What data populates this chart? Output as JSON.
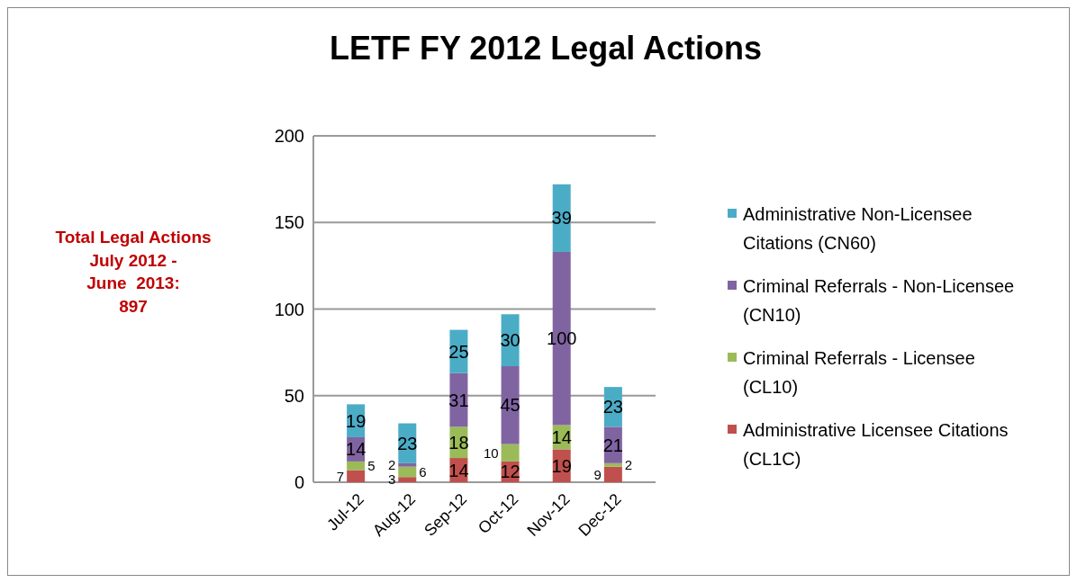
{
  "chart_data": {
    "type": "bar",
    "title": "LETF FY 2012 Legal Actions",
    "categories": [
      "Jul-12",
      "Aug-12",
      "Sep-12",
      "Oct-12",
      "Nov-12",
      "Dec-12"
    ],
    "stacked": true,
    "series": [
      {
        "name": "Administrative Licensee Citations (CL1C)",
        "color": "#c0504d",
        "values": [
          7,
          3,
          14,
          12,
          19,
          9
        ]
      },
      {
        "name": "Criminal Referrals - Licensee (CL10)",
        "color": "#9bbb59",
        "values": [
          5,
          6,
          18,
          10,
          14,
          2
        ]
      },
      {
        "name": "Criminal Referrals - Non-Licensee (CN10)",
        "color": "#8064a2",
        "values": [
          14,
          2,
          31,
          45,
          100,
          21
        ]
      },
      {
        "name": "Administrative Non-Licensee Citations (CN60)",
        "color": "#4bacc6",
        "values": [
          19,
          23,
          25,
          30,
          39,
          23
        ]
      }
    ],
    "ylim": [
      0,
      200
    ],
    "yticks": [
      0,
      50,
      100,
      150,
      200
    ],
    "grid": "y",
    "legend": "right",
    "data_labels": true,
    "annotations": [
      "Total Legal Actions\nJuly 2012 -\nJune  2013:\n897"
    ]
  }
}
